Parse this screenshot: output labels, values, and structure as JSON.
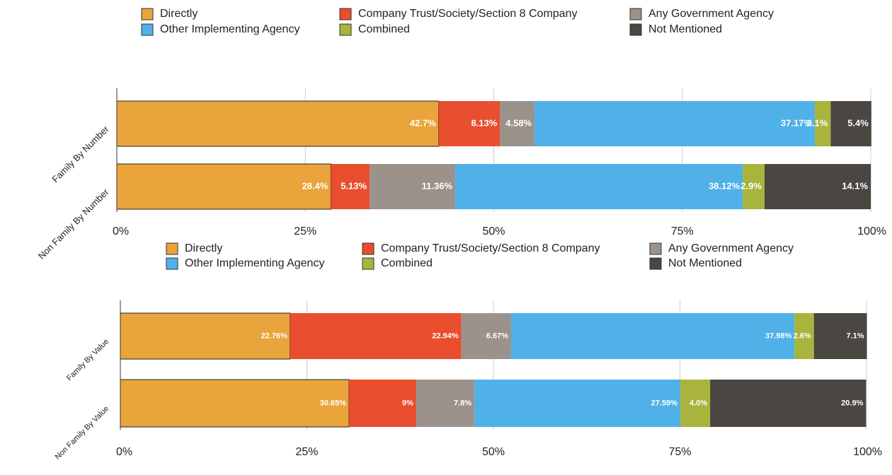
{
  "chart_data": [
    {
      "type": "bar",
      "orientation": "horizontal",
      "stacked": true,
      "categories": [
        "Family By Number",
        "Non Family By Number"
      ],
      "series": [
        {
          "name": "Directly",
          "color": "#e9a43b",
          "values": [
            42.7,
            28.4
          ],
          "value_labels": [
            "42.7%",
            "28.4%"
          ]
        },
        {
          "name": "Company Trust/Society/Section 8 Company",
          "color": "#e94e2f",
          "values": [
            8.13,
            5.13
          ],
          "value_labels": [
            "8.13%",
            "5.13%"
          ]
        },
        {
          "name": "Any Government Agency",
          "color": "#9b928b",
          "values": [
            4.58,
            11.36
          ],
          "value_labels": [
            "4.58%",
            "11.36%"
          ]
        },
        {
          "name": "Other Implementing Agency",
          "color": "#4fb1e7",
          "values": [
            37.17,
            38.12
          ],
          "value_labels": [
            "37.17%",
            "38.12%"
          ]
        },
        {
          "name": "Combined",
          "color": "#a8b43c",
          "values": [
            2.1,
            2.9
          ],
          "value_labels": [
            "2.1%",
            "2.9%"
          ]
        },
        {
          "name": "Not Mentioned",
          "color": "#4a4642",
          "values": [
            5.4,
            14.1
          ],
          "value_labels": [
            "5.4%",
            "14.1%"
          ]
        }
      ],
      "xlim": [
        0,
        100
      ],
      "xticks": [
        {
          "value": 0,
          "label": "0%"
        },
        {
          "value": 25,
          "label": "25%"
        },
        {
          "value": 50,
          "label": "50%"
        },
        {
          "value": 75,
          "label": "75%"
        },
        {
          "value": 100,
          "label": "100%"
        }
      ],
      "grid": true
    },
    {
      "type": "bar",
      "orientation": "horizontal",
      "stacked": true,
      "categories": [
        "Family By Value",
        "Non Family By Value"
      ],
      "series": [
        {
          "name": "Directly",
          "color": "#e9a43b",
          "values": [
            22.76,
            30.65
          ],
          "value_labels": [
            "22.76%",
            "30.65%"
          ]
        },
        {
          "name": "Company Trust/Society/Section 8 Company",
          "color": "#e94e2f",
          "values": [
            22.94,
            9
          ],
          "value_labels": [
            "22.94%",
            "9%"
          ]
        },
        {
          "name": "Any Government Agency",
          "color": "#9b928b",
          "values": [
            6.67,
            7.8
          ],
          "value_labels": [
            "6.67%",
            "7.8%"
          ]
        },
        {
          "name": "Other Implementing Agency",
          "color": "#4fb1e7",
          "values": [
            37.98,
            27.59
          ],
          "value_labels": [
            "37.98%",
            "27.59%"
          ]
        },
        {
          "name": "Combined",
          "color": "#a8b43c",
          "values": [
            2.6,
            4
          ],
          "value_labels": [
            "2.6%",
            "4.0%"
          ]
        },
        {
          "name": "Not Mentioned",
          "color": "#4a4642",
          "values": [
            7.1,
            20.9
          ],
          "value_labels": [
            "7.1%",
            "20.9%"
          ]
        }
      ],
      "xlim": [
        0,
        100
      ],
      "xticks": [
        {
          "value": 0,
          "label": "0%"
        },
        {
          "value": 25,
          "label": "25%"
        },
        {
          "value": 50,
          "label": "50%"
        },
        {
          "value": 75,
          "label": "75%"
        },
        {
          "value": 100,
          "label": "100%"
        }
      ],
      "grid": true
    }
  ]
}
